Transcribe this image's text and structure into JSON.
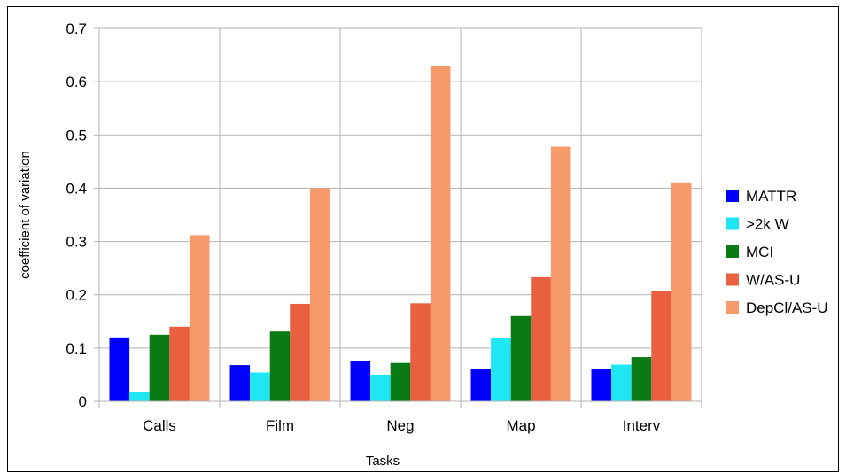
{
  "chart_data": {
    "type": "bar",
    "title": "",
    "xlabel": "Tasks",
    "ylabel": "coefficient of variation",
    "ylim": [
      0,
      0.7
    ],
    "yticks": [
      "0",
      "0.1",
      "0.2",
      "0.3",
      "0.4",
      "0.5",
      "0.6",
      "0.7"
    ],
    "grid": true,
    "legend_position": "right",
    "categories": [
      "Calls",
      "Film",
      "Neg",
      "Map",
      "Interv"
    ],
    "series": [
      {
        "name": "MATTR",
        "color": "#0000ff",
        "values": [
          0.12,
          0.068,
          0.076,
          0.061,
          0.06
        ]
      },
      {
        "name": ">2k W",
        "color": "#1ee6f2",
        "values": [
          0.017,
          0.054,
          0.05,
          0.118,
          0.069
        ]
      },
      {
        "name": "MCI",
        "color": "#0a7a14",
        "values": [
          0.125,
          0.131,
          0.072,
          0.16,
          0.083
        ]
      },
      {
        "name": "W/AS-U",
        "color": "#e8603f",
        "values": [
          0.14,
          0.183,
          0.184,
          0.233,
          0.207
        ]
      },
      {
        "name": "DepCl/AS-U",
        "color": "#f79a6b",
        "values": [
          0.312,
          0.4,
          0.63,
          0.478,
          0.411
        ]
      }
    ]
  }
}
